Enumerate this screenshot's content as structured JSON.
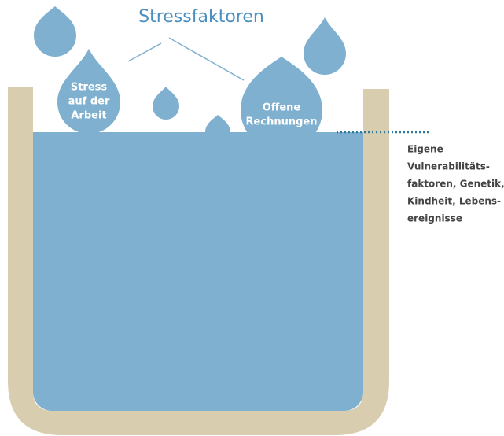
{
  "title": "Stressfaktoren",
  "drops": [
    {
      "label": [
        "Stress",
        "auf der",
        "Arbeit"
      ]
    },
    {
      "label": [
        "Offene",
        "Rechnungen"
      ]
    }
  ],
  "annotation": [
    "Eigene",
    "Vulnerabilitäts-",
    "faktoren, Genetik,",
    "Kindheit, Lebens-",
    "ereignisse"
  ]
}
